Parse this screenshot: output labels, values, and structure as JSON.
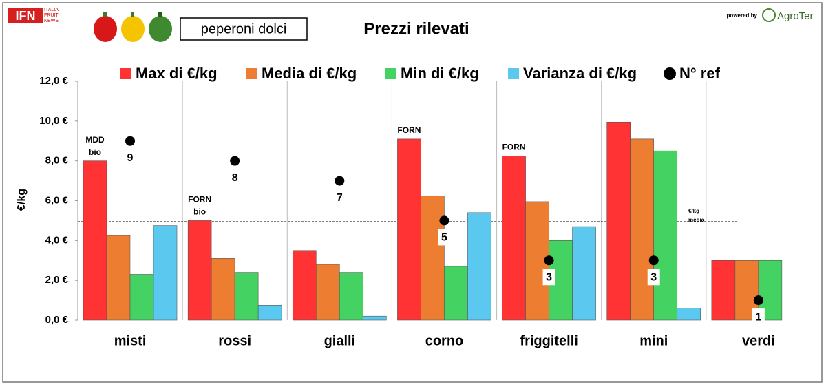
{
  "header": {
    "logo": "IFN",
    "logo_text": [
      "ITALIA",
      "FRUIT",
      "NEWS"
    ],
    "powered_by": "powered by",
    "brand": "AgroTer"
  },
  "chart_data": {
    "type": "bar",
    "title": "Prezzi rilevati",
    "subtitle": "peperoni dolci",
    "y_label": "€/kg",
    "categories": [
      "misti",
      "rossi",
      "gialli",
      "corno",
      "friggitelli",
      "mini",
      "verdi"
    ],
    "series": [
      {
        "name": "Max di €/kg",
        "color": "#ff3333",
        "values": [
          8.0,
          5.0,
          3.5,
          9.1,
          8.25,
          9.95,
          3.0
        ]
      },
      {
        "name": "Media di €/kg",
        "color": "#ed7d31",
        "values": [
          4.25,
          3.1,
          2.8,
          6.25,
          5.95,
          9.1,
          3.0
        ]
      },
      {
        "name": "Min di €/kg",
        "color": "#44d362",
        "values": [
          2.3,
          2.4,
          2.4,
          2.7,
          4.0,
          8.5,
          3.0
        ]
      },
      {
        "name": "Varianza di €/kg",
        "color": "#5bc8f0",
        "values": [
          4.75,
          0.75,
          0.2,
          5.4,
          4.7,
          0.6,
          null
        ]
      },
      {
        "name": "N° ref",
        "color": "#000000",
        "mark": "dot",
        "values": [
          9,
          8,
          7,
          5,
          3,
          3,
          1
        ]
      }
    ],
    "annotations": [
      {
        "category": "misti",
        "lines": [
          "MDD",
          "bio"
        ]
      },
      {
        "category": "rossi",
        "lines": [
          "FORN",
          "bio"
        ]
      },
      {
        "category": "corno",
        "lines": [
          "FORN"
        ]
      },
      {
        "category": "friggitelli",
        "lines": [
          "FORN"
        ]
      }
    ],
    "reference_line": {
      "value": 4.95,
      "label_lines": [
        "€/kg",
        "medio"
      ]
    },
    "ylim": [
      0,
      12
    ],
    "yticks": [
      {
        "value": 0,
        "label": "0,0 €"
      },
      {
        "value": 2,
        "label": "2,0 €"
      },
      {
        "value": 4,
        "label": "4,0 €"
      },
      {
        "value": 6,
        "label": "6,0 €"
      },
      {
        "value": 8,
        "label": "8,0 €"
      },
      {
        "value": 10,
        "label": "10,0 €"
      },
      {
        "value": 12,
        "label": "12,0 €"
      }
    ],
    "legend": "top"
  }
}
